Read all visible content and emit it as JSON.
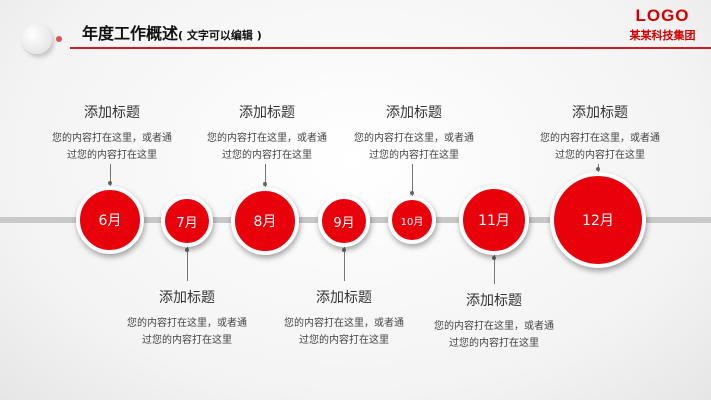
{
  "header": {
    "title": "年度工作概述",
    "subtitle": "( 文字可以编辑 )",
    "logo": "LOGO",
    "company": "某某科技集团"
  },
  "accent": "#e8000a",
  "timeline": [
    {
      "month": "6月",
      "title": "添加标题",
      "desc": "您的内容打在这里，或者通过您的内容打在这里",
      "position": "above"
    },
    {
      "month": "7月",
      "title": "添加标题",
      "desc": "您的内容打在这里，或者通过您的内容打在这里",
      "position": "below"
    },
    {
      "month": "8月",
      "title": "添加标题",
      "desc": "您的内容打在这里，或者通过您的内容打在这里",
      "position": "above"
    },
    {
      "month": "9月",
      "title": "添加标题",
      "desc": "您的内容打在这里，或者通过您的内容打在这里",
      "position": "below"
    },
    {
      "month": "10月",
      "title": "添加标题",
      "desc": "您的内容打在这里，或者通过您的内容打在这里",
      "position": "above"
    },
    {
      "month": "11月",
      "title": "添加标题",
      "desc": "您的内容打在这里，或者通过您的内容打在这里",
      "position": "below"
    },
    {
      "month": "12月",
      "title": "添加标题",
      "desc": "您的内容打在这里，或者通过您的内容打在这里",
      "position": "above"
    }
  ]
}
